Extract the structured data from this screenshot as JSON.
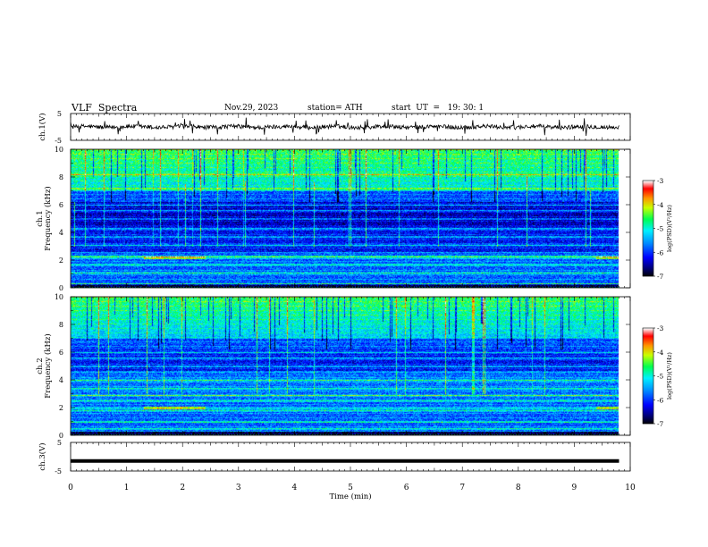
{
  "header": {
    "title": "VLF  Spectra",
    "date": "Nov.29, 2023",
    "station": "station= ATH",
    "start": "start  UT  =   19: 30: 1"
  },
  "chart_data": [
    {
      "type": "line",
      "panel": "ch1-waveform",
      "ylabel": "ch.1(V)",
      "ylim": [
        -5,
        5
      ],
      "y_ticks": [
        "5",
        "-5"
      ],
      "xlim": [
        0,
        10
      ],
      "series": [
        {
          "values_summary": "noisy signal around 0 V, amplitude about ±1 V with occasional spikes"
        }
      ]
    },
    {
      "type": "heatmap",
      "panel": "ch1-spectrogram",
      "ylabel": "ch.1\nFrequency  (kHz)",
      "ylim": [
        0,
        10
      ],
      "y_ticks": [
        "0",
        "2",
        "4",
        "6",
        "8",
        "10"
      ],
      "xlim": [
        0,
        9.8
      ],
      "colorbar": {
        "label": "log(PSD)(V²/Hz)",
        "range": [
          -7,
          -3
        ],
        "ticks": [
          "-3",
          "-4",
          "-5",
          "-6",
          "-7"
        ]
      },
      "bands_khz": [
        0.3,
        1.1,
        1.7,
        2.3,
        3.1,
        3.7,
        4.3,
        5.0,
        5.6,
        6.0,
        7.2,
        8.2
      ],
      "strong_line_khz": 2.2,
      "strong_segments_min": [
        [
          1.3,
          2.4
        ],
        [
          9.4,
          9.8
        ]
      ]
    },
    {
      "type": "heatmap",
      "panel": "ch2-spectrogram",
      "ylabel": "ch.2\nFrequency  (kHz)",
      "ylim": [
        0,
        10
      ],
      "y_ticks": [
        "0",
        "2",
        "4",
        "6",
        "8",
        "10"
      ],
      "xlim": [
        0,
        9.8
      ],
      "colorbar": {
        "label": "log(PSD)(V²/Hz)",
        "range": [
          -7,
          -3
        ],
        "ticks": [
          "-3",
          "-4",
          "-5",
          "-6",
          "-7"
        ]
      },
      "bands_khz": [
        0.5,
        1.0,
        1.8,
        2.5,
        2.9,
        3.4,
        4.0,
        4.6,
        5.0,
        5.6,
        6.0
      ],
      "strong_line_khz": 2.0,
      "strong_segments_min": [
        [
          1.3,
          2.4
        ],
        [
          9.4,
          9.8
        ]
      ]
    },
    {
      "type": "line",
      "panel": "ch3-waveform",
      "ylabel": "ch.3(V)",
      "ylim": [
        -5,
        5
      ],
      "y_ticks": [
        "5",
        "-5"
      ],
      "xlim": [
        0,
        10
      ],
      "series": [
        {
          "values_summary": "flat trace at about -1.5 V"
        }
      ]
    }
  ],
  "x_axis": {
    "label": "Time  (min)",
    "ticks": [
      "0",
      "1",
      "2",
      "3",
      "4",
      "5",
      "6",
      "7",
      "8",
      "9",
      "10"
    ]
  },
  "colors": {
    "spectrogram_scale": [
      "#000000",
      "#00007f",
      "#0000ff",
      "#0080ff",
      "#00ffff",
      "#00ff00",
      "#ffff00",
      "#ff8000",
      "#ff0000",
      "#ffffff"
    ]
  }
}
